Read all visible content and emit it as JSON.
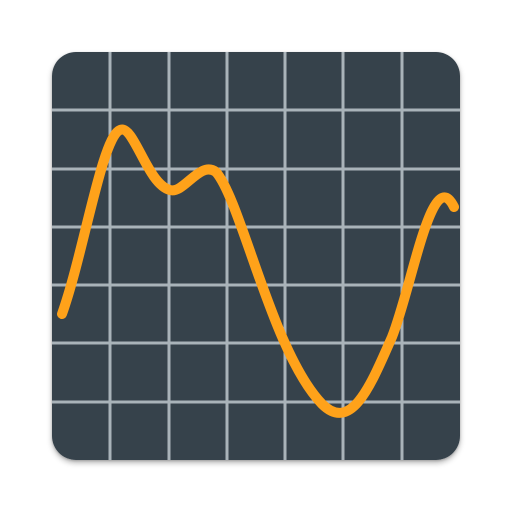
{
  "icon": {
    "name": "oscilloscope-graph-icon",
    "colors": {
      "background": "#36424B",
      "grid": "#A9B3B9",
      "waveform": "#FFA21A"
    },
    "grid": {
      "visible": true,
      "columns": 7,
      "rows": 7
    }
  }
}
